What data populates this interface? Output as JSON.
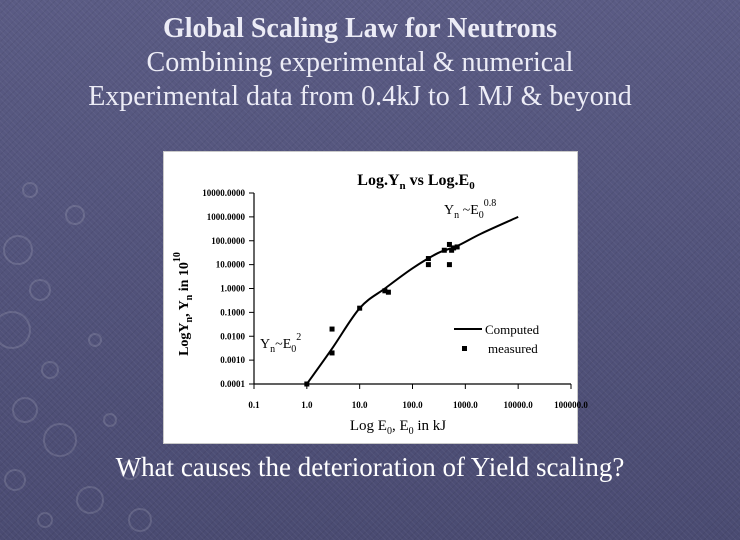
{
  "slide": {
    "title_line1": "Global Scaling Law for Neutrons",
    "title_line2": "Combining experimental & numerical",
    "title_line3": "Experimental data from 0.4kJ to 1 MJ & beyond",
    "question": "What causes the deterioration of Yield scaling?"
  },
  "chart_data": {
    "type": "scatter",
    "title": "Log.Yn vs Log.E0",
    "xlabel": "Log E0, E0 in kJ",
    "ylabel": "LogYn, Yn in 10^10",
    "x_scale": "log",
    "y_scale": "log",
    "xlim": [
      0.1,
      100000
    ],
    "ylim": [
      0.0001,
      10000
    ],
    "x_ticks": [
      "0.1",
      "1.0",
      "10.0",
      "100.0",
      "1000.0",
      "10000.0",
      "100000.0"
    ],
    "y_ticks": [
      "10000.0000",
      "1000.0000",
      "100.0000",
      "10.0000",
      "1.0000",
      "0.1000",
      "0.0100",
      "0.0010",
      "0.0001"
    ],
    "grid": false,
    "legend_position": "right",
    "annotations": [
      {
        "text": "Yn ~E0^0.8",
        "x": 1000,
        "y": 1500
      },
      {
        "text": "Yn~E0^2",
        "x": 0.7,
        "y": 0.005
      }
    ],
    "series": [
      {
        "name": "Computed",
        "type": "line",
        "color": "#000000",
        "x": [
          1.0,
          3.0,
          10,
          30,
          100,
          300,
          700,
          2000,
          10000
        ],
        "y": [
          0.0001,
          0.003,
          0.15,
          1.0,
          7,
          30,
          60,
          200,
          1000
        ]
      },
      {
        "name": "measured",
        "type": "scatter",
        "color": "#000000",
        "x": [
          1.0,
          3.0,
          3.0,
          10,
          30,
          35,
          200,
          200,
          400,
          500,
          500,
          550,
          600,
          700
        ],
        "y": [
          0.0001,
          0.02,
          0.002,
          0.15,
          0.8,
          0.7,
          18,
          10,
          40,
          10,
          70,
          40,
          50,
          55
        ]
      }
    ]
  }
}
